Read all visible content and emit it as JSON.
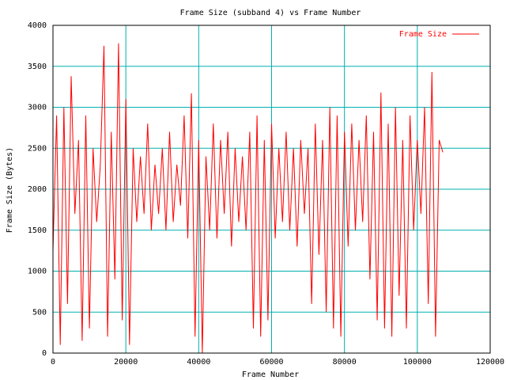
{
  "chart_data": {
    "type": "line",
    "title": "Frame Size (subband 4) vs Frame Number",
    "xlabel": "Frame Number",
    "ylabel": "Frame Size (Bytes)",
    "x": [
      0,
      1000,
      2000,
      3000,
      4000,
      5000,
      6000,
      7000,
      8000,
      9000,
      10000,
      11000,
      12000,
      13000,
      14000,
      15000,
      16000,
      17000,
      18000,
      19000,
      20000,
      21000,
      22000,
      23000,
      24000,
      25000,
      26000,
      27000,
      28000,
      29000,
      30000,
      31000,
      32000,
      33000,
      34000,
      35000,
      36000,
      37000,
      38000,
      39000,
      40000,
      41000,
      42000,
      43000,
      44000,
      45000,
      46000,
      47000,
      48000,
      49000,
      50000,
      51000,
      52000,
      53000,
      54000,
      55000,
      56000,
      57000,
      58000,
      59000,
      60000,
      61000,
      62000,
      63000,
      64000,
      65000,
      66000,
      67000,
      68000,
      69000,
      70000,
      71000,
      72000,
      73000,
      74000,
      75000,
      76000,
      77000,
      78000,
      79000,
      80000,
      81000,
      82000,
      83000,
      84000,
      85000,
      86000,
      87000,
      88000,
      89000,
      90000,
      91000,
      92000,
      93000,
      94000,
      95000,
      96000,
      97000,
      98000,
      99000,
      100000,
      101000,
      102000,
      103000,
      104000,
      105000,
      106000,
      107000
    ],
    "series": [
      {
        "name": "Frame Size",
        "color": "#ff0000",
        "values": [
          1250,
          2900,
          100,
          3000,
          600,
          3380,
          1700,
          2600,
          150,
          2900,
          300,
          2500,
          1600,
          2300,
          3750,
          200,
          2700,
          900,
          3780,
          400,
          3100,
          100,
          2500,
          1600,
          2400,
          1700,
          2800,
          1500,
          2300,
          1700,
          2500,
          1500,
          2700,
          1600,
          2300,
          1800,
          2900,
          1400,
          3170,
          200,
          2600,
          0,
          2400,
          1500,
          2800,
          1400,
          2600,
          1700,
          2700,
          1300,
          2500,
          1600,
          2400,
          1500,
          2700,
          300,
          2900,
          200,
          2600,
          400,
          2800,
          1400,
          2500,
          1600,
          2700,
          1500,
          2500,
          1300,
          2600,
          1700,
          2500,
          600,
          2800,
          1200,
          2600,
          500,
          3000,
          300,
          2900,
          200,
          2700,
          1300,
          2800,
          1500,
          2600,
          1600,
          2900,
          900,
          2700,
          400,
          3180,
          300,
          2800,
          200,
          3000,
          700,
          2600,
          300,
          2900,
          1500,
          2600,
          1700,
          3000,
          600,
          3430,
          200,
          2600,
          2450
        ]
      }
    ],
    "xlim": [
      0,
      120000
    ],
    "xticks": [
      0,
      20000,
      40000,
      60000,
      80000,
      100000,
      120000
    ],
    "ylim": [
      0,
      4000
    ],
    "yticks": [
      0,
      500,
      1000,
      1500,
      2000,
      2500,
      3000,
      3500,
      4000
    ],
    "grid": true,
    "grid_color": "#00b0b0",
    "legend": "upper right"
  }
}
